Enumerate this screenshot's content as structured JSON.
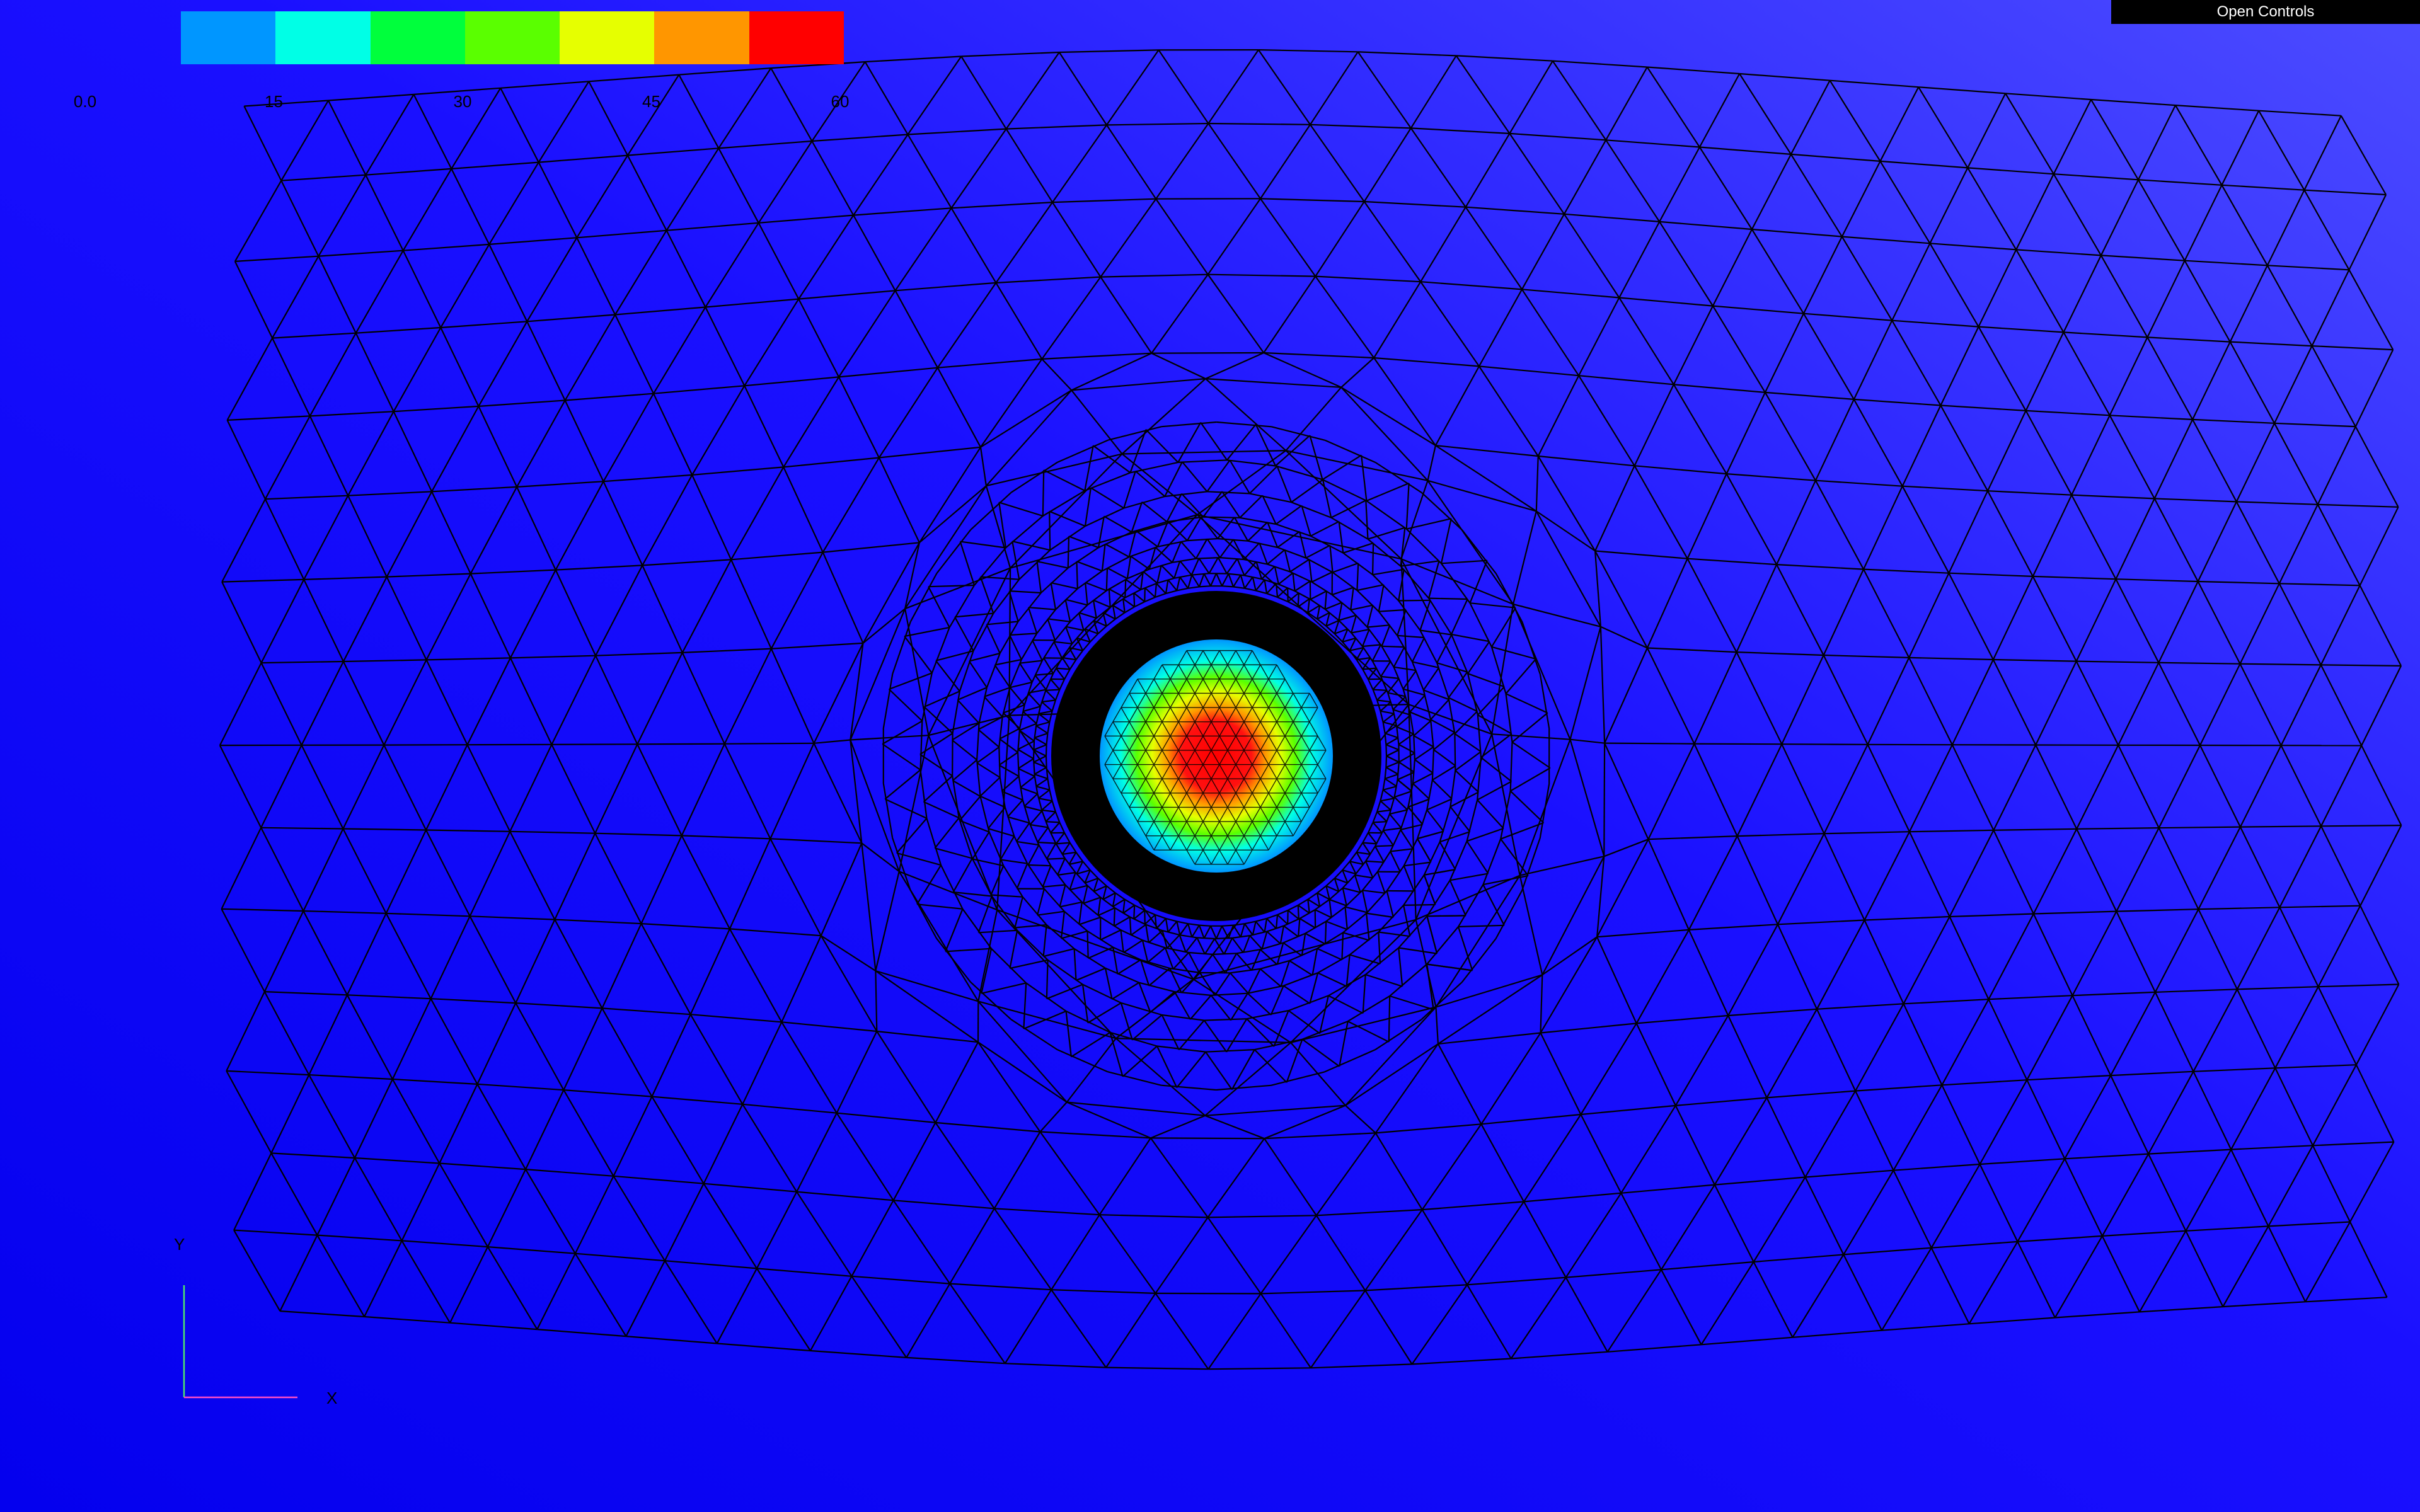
{
  "app": {
    "open_controls_label": "Open Controls"
  },
  "colormap": {
    "colors": [
      "#0000ff",
      "#0096ff",
      "#00ffe6",
      "#00ff3c",
      "#5aff00",
      "#e6ff00",
      "#ff9600",
      "#ff0000"
    ],
    "ticks": [
      "0.0",
      "15",
      "30",
      "45",
      "60"
    ]
  },
  "axes_triad": {
    "x_label": "X",
    "y_label": "Y",
    "x_color": "#ff4ec8",
    "y_color": "#4ee86a"
  },
  "scene": {
    "background_gradient": [
      "#0a00f0",
      "#2a22ff",
      "#4a48ff"
    ],
    "mesh_line_color": "#000000"
  }
}
